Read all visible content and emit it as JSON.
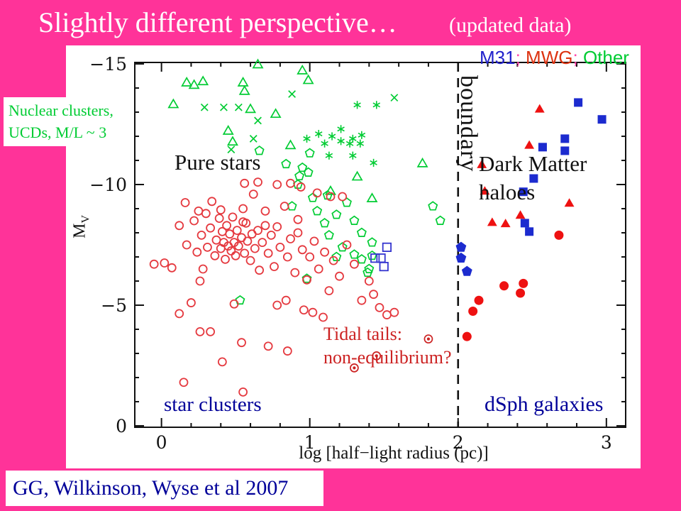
{
  "title": {
    "main": "Slightly different perspective…",
    "suffix": "(updated data)"
  },
  "credit": {
    "text": "GG, Wilkinson, Wyse et al 2007",
    "color": "#000099"
  },
  "legend": {
    "separator": ";",
    "separator_color": "#ff44aa",
    "items": [
      {
        "label": "M31",
        "color": "#2222cc"
      },
      {
        "label": "MWG",
        "color": "#dd3311"
      },
      {
        "label": "Other",
        "color": "#00cc33"
      }
    ]
  },
  "annotations": {
    "nuclear": {
      "line1": "Nuclear clusters,",
      "line2": "UCDs, M/L ~ 3",
      "color": "#00cc33"
    },
    "pure_stars": {
      "text": "Pure stars",
      "color": "#111111"
    },
    "dark_matter": {
      "line1": "Dark Matter",
      "line2": "haloes",
      "color": "#111111"
    },
    "boundary": {
      "text": "boundary",
      "color": "#111111"
    },
    "tidal": {
      "line1": "Tidal tails:",
      "line2": "non-equilibrium?",
      "color": "#cc2222"
    },
    "star_clusters": {
      "text": "star clusters",
      "color": "#000099"
    },
    "dsph": {
      "text": "dSph galaxies",
      "color": "#000099"
    }
  },
  "chart_data": {
    "type": "scatter",
    "xlabel": "log [half−light radius (pc)]",
    "ylabel": "M_V",
    "ylabel_main": "M",
    "ylabel_sub": "V",
    "x_ticks": [
      0,
      1,
      2,
      3
    ],
    "y_ticks": [
      -15,
      -10,
      -5,
      0
    ],
    "x_minor_step": 0.2,
    "y_minor_step": 1,
    "x_range": [
      -0.18,
      3.13
    ],
    "y_range": [
      0.06,
      -15.06
    ],
    "grid": false,
    "boundary_line_x": 2,
    "series": [
      {
        "name": "other-nuclear-clusters-triangles",
        "marker": "open-triangle",
        "color": "#00cc33",
        "points": [
          [
            0.65,
            -14.95
          ],
          [
            0.95,
            -14.7
          ],
          [
            0.99,
            -14.3
          ],
          [
            0.17,
            -14.2
          ],
          [
            0.22,
            -14.1
          ],
          [
            0.28,
            -14.25
          ],
          [
            0.55,
            -14.2
          ],
          [
            0.56,
            -13.85
          ],
          [
            0.08,
            -13.3
          ],
          [
            0.6,
            -13.1
          ],
          [
            0.77,
            -12.9
          ],
          [
            0.45,
            -12.2
          ],
          [
            0.48,
            -11.75
          ],
          [
            0.87,
            -11.6
          ],
          [
            1.76,
            -10.85
          ],
          [
            1.14,
            -9.7
          ],
          [
            1.42,
            -9.4
          ],
          [
            1.32,
            -10.3
          ]
        ]
      },
      {
        "name": "other-crosses",
        "marker": "cross",
        "color": "#00cc33",
        "points": [
          [
            0.29,
            -13.2
          ],
          [
            0.42,
            -13.2
          ],
          [
            0.52,
            -13.2
          ],
          [
            0.88,
            -13.75
          ],
          [
            0.62,
            -11.9
          ],
          [
            0.47,
            -11.45
          ],
          [
            1.57,
            -13.6
          ],
          [
            0.65,
            -12.65
          ]
        ]
      },
      {
        "name": "other-asterisks",
        "marker": "asterisk",
        "color": "#00cc33",
        "points": [
          [
            1.32,
            -13.3
          ],
          [
            1.45,
            -13.3
          ],
          [
            0.98,
            -11.9
          ],
          [
            1.06,
            -12.1
          ],
          [
            1.1,
            -11.7
          ],
          [
            1.15,
            -12.0
          ],
          [
            1.21,
            -12.3
          ],
          [
            1.21,
            -11.8
          ],
          [
            1.27,
            -11.7
          ],
          [
            1.29,
            -11.9
          ],
          [
            1.34,
            -11.7
          ],
          [
            1.35,
            -12.05
          ],
          [
            1.13,
            -11.2
          ],
          [
            1.29,
            -11.2
          ],
          [
            1.43,
            -10.9
          ]
        ]
      },
      {
        "name": "other-pentagons",
        "marker": "open-pentagon",
        "color": "#00cc33",
        "points": [
          [
            0.66,
            -11.4
          ],
          [
            0.84,
            -10.85
          ],
          [
            1.0,
            -11.3
          ],
          [
            0.95,
            -10.7
          ],
          [
            0.93,
            -10.35
          ],
          [
            0.99,
            -10.5
          ],
          [
            0.92,
            -10.0
          ],
          [
            1.02,
            -9.45
          ],
          [
            0.88,
            -9.1
          ],
          [
            1.12,
            -9.55
          ],
          [
            1.05,
            -8.9
          ],
          [
            1.1,
            -8.4
          ],
          [
            1.18,
            -8.75
          ],
          [
            1.3,
            -8.5
          ],
          [
            1.25,
            -9.25
          ],
          [
            1.35,
            -8.0
          ],
          [
            1.13,
            -7.9
          ],
          [
            1.22,
            -7.4
          ],
          [
            1.3,
            -7.1
          ],
          [
            1.35,
            -6.9
          ],
          [
            1.18,
            -7.0
          ],
          [
            1.42,
            -7.6
          ],
          [
            1.4,
            -6.5
          ],
          [
            1.39,
            -6.35
          ],
          [
            1.42,
            -7.05
          ],
          [
            1.83,
            -9.1
          ],
          [
            1.88,
            -8.5
          ],
          [
            0.98,
            -6.1
          ],
          [
            0.53,
            -5.2
          ]
        ]
      },
      {
        "name": "mwg-globular-clusters-circles",
        "marker": "open-circle",
        "color": "#e5393f",
        "points": [
          [
            0.56,
            -10.05
          ],
          [
            0.65,
            -10.1
          ],
          [
            0.78,
            -10.0
          ],
          [
            0.87,
            -10.05
          ],
          [
            0.94,
            -9.9
          ],
          [
            1.14,
            -9.5
          ],
          [
            1.22,
            -9.5
          ],
          [
            1.05,
            -9.65
          ],
          [
            0.16,
            -9.25
          ],
          [
            0.25,
            -8.9
          ],
          [
            0.34,
            -9.3
          ],
          [
            0.4,
            -8.95
          ],
          [
            0.55,
            -9.0
          ],
          [
            0.62,
            -9.6
          ],
          [
            0.7,
            -8.9
          ],
          [
            0.83,
            -9.1
          ],
          [
            0.92,
            -8.55
          ],
          [
            0.02,
            -6.75
          ],
          [
            -0.05,
            -6.7
          ],
          [
            0.07,
            -6.55
          ],
          [
            0.12,
            -8.3
          ],
          [
            0.17,
            -7.5
          ],
          [
            0.22,
            -8.5
          ],
          [
            0.24,
            -7.2
          ],
          [
            0.27,
            -7.9
          ],
          [
            0.3,
            -8.8
          ],
          [
            0.28,
            -6.5
          ],
          [
            0.31,
            -7.4
          ],
          [
            0.33,
            -8.2
          ],
          [
            0.36,
            -7.05
          ],
          [
            0.37,
            -7.7
          ],
          [
            0.39,
            -8.6
          ],
          [
            0.4,
            -7.35
          ],
          [
            0.41,
            -8.05
          ],
          [
            0.42,
            -7.6
          ],
          [
            0.43,
            -6.9
          ],
          [
            0.44,
            -8.3
          ],
          [
            0.45,
            -7.45
          ],
          [
            0.46,
            -7.95
          ],
          [
            0.47,
            -7.25
          ],
          [
            0.48,
            -8.65
          ],
          [
            0.49,
            -7.6
          ],
          [
            0.5,
            -7.05
          ],
          [
            0.51,
            -8.1
          ],
          [
            0.52,
            -7.45
          ],
          [
            0.54,
            -7.8
          ],
          [
            0.55,
            -8.45
          ],
          [
            0.56,
            -7.15
          ],
          [
            0.57,
            -8.4
          ],
          [
            0.58,
            -7.65
          ],
          [
            0.6,
            -6.85
          ],
          [
            0.61,
            -7.95
          ],
          [
            0.63,
            -7.35
          ],
          [
            0.65,
            -8.1
          ],
          [
            0.66,
            -6.45
          ],
          [
            0.68,
            -7.6
          ],
          [
            0.7,
            -8.3
          ],
          [
            0.72,
            -7.15
          ],
          [
            0.74,
            -7.9
          ],
          [
            0.76,
            -6.6
          ],
          [
            0.78,
            -8.25
          ],
          [
            0.8,
            -7.4
          ],
          [
            0.85,
            -7.0
          ],
          [
            0.87,
            -7.75
          ],
          [
            0.9,
            -6.35
          ],
          [
            0.92,
            -8.0
          ],
          [
            0.95,
            -7.3
          ],
          [
            0.98,
            -6.05
          ],
          [
            1.0,
            -7.0
          ],
          [
            1.03,
            -7.65
          ],
          [
            1.06,
            -6.5
          ],
          [
            1.1,
            -7.2
          ],
          [
            1.13,
            -5.6
          ],
          [
            1.16,
            -6.85
          ],
          [
            1.2,
            -6.2
          ],
          [
            1.25,
            -7.5
          ],
          [
            1.3,
            -6.7
          ],
          [
            1.35,
            -5.2
          ],
          [
            1.4,
            -6.0
          ],
          [
            1.43,
            -5.45
          ],
          [
            1.47,
            -4.9
          ],
          [
            1.52,
            -4.6
          ],
          [
            1.57,
            -4.7
          ],
          [
            0.26,
            -3.9
          ],
          [
            0.33,
            -3.9
          ],
          [
            0.54,
            -3.45
          ],
          [
            0.85,
            -3.1
          ],
          [
            0.41,
            -2.65
          ],
          [
            0.15,
            -1.8
          ],
          [
            0.55,
            -1.4
          ],
          [
            0.2,
            -5.1
          ],
          [
            0.12,
            -4.65
          ],
          [
            0.49,
            -5.05
          ],
          [
            0.78,
            -5.0
          ],
          [
            0.84,
            -5.2
          ],
          [
            0.96,
            -4.8
          ],
          [
            1.02,
            -4.7
          ],
          [
            1.09,
            -4.5
          ],
          [
            0.72,
            -3.3
          ],
          [
            0.26,
            -6.0
          ]
        ]
      },
      {
        "name": "tidal-tail-clusters-circled-dots",
        "marker": "circled-dot",
        "color": "#cc2222",
        "points": [
          [
            1.8,
            -3.6
          ],
          [
            1.45,
            -2.9
          ],
          [
            1.3,
            -2.4
          ]
        ]
      },
      {
        "name": "mwg-satellites-triangles",
        "marker": "filled-triangle",
        "color": "#ee1111",
        "points": [
          [
            2.55,
            -13.1
          ],
          [
            2.48,
            -11.6
          ],
          [
            2.16,
            -10.8
          ],
          [
            2.18,
            -9.7
          ],
          [
            2.75,
            -9.2
          ],
          [
            2.42,
            -8.7
          ],
          [
            2.32,
            -8.35
          ],
          [
            2.23,
            -8.4
          ]
        ]
      },
      {
        "name": "mwg-dsph-circles",
        "marker": "filled-circle",
        "color": "#ee1111",
        "points": [
          [
            2.68,
            -7.9
          ],
          [
            2.31,
            -5.8
          ],
          [
            2.44,
            -5.9
          ],
          [
            2.42,
            -5.5
          ],
          [
            2.14,
            -5.2
          ],
          [
            2.1,
            -4.75
          ],
          [
            2.06,
            -3.7
          ]
        ]
      },
      {
        "name": "m31-satellites-squares",
        "marker": "filled-square",
        "color": "#1c2bcf",
        "points": [
          [
            2.81,
            -13.4
          ],
          [
            2.97,
            -12.7
          ],
          [
            2.72,
            -11.9
          ],
          [
            2.57,
            -11.55
          ],
          [
            2.72,
            -11.4
          ],
          [
            2.51,
            -10.25
          ],
          [
            2.44,
            -9.7
          ],
          [
            2.45,
            -8.4
          ],
          [
            2.48,
            -8.05
          ]
        ]
      },
      {
        "name": "m31-extended-clusters-open-squares",
        "marker": "open-square",
        "color": "#3535cf",
        "points": [
          [
            1.52,
            -7.4
          ],
          [
            1.44,
            -6.95
          ],
          [
            1.48,
            -6.95
          ],
          [
            1.5,
            -6.6
          ]
        ]
      },
      {
        "name": "boundary-objects-pentagons",
        "marker": "filled-pentagon",
        "color": "#1c2bcf",
        "points": [
          [
            2.02,
            -7.4
          ],
          [
            2.02,
            -6.95
          ],
          [
            2.06,
            -6.4
          ]
        ]
      }
    ]
  }
}
